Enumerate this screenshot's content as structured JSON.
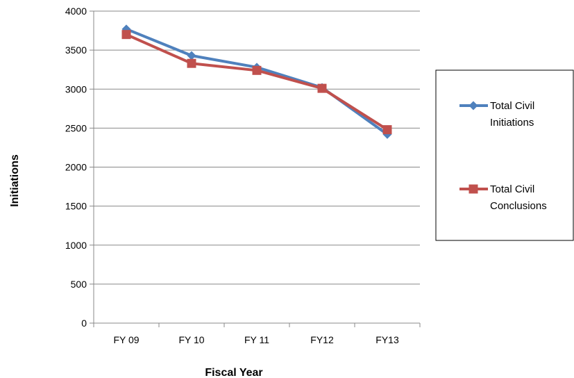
{
  "chart_data": {
    "type": "line",
    "title": "",
    "xlabel": "Fiscal Year",
    "ylabel": "Initiations",
    "categories": [
      "FY 09",
      "FY 10",
      "FY 11",
      "FY12",
      "FY13"
    ],
    "ylim": [
      0,
      4000
    ],
    "yticks": [
      "0",
      "500",
      "1000",
      "1500",
      "2000",
      "2500",
      "3000",
      "3500",
      "4000"
    ],
    "grid": true,
    "legend_position": "right",
    "series": [
      {
        "name_lines": [
          "Total Civil",
          "Initiations"
        ],
        "values": [
          3770,
          3430,
          3280,
          3020,
          2420
        ],
        "color": "#4F81BD",
        "marker": "diamond"
      },
      {
        "name_lines": [
          "Total Civil",
          "Conclusions"
        ],
        "values": [
          3700,
          3330,
          3240,
          3010,
          2480
        ],
        "color": "#C0504D",
        "marker": "square"
      }
    ]
  }
}
